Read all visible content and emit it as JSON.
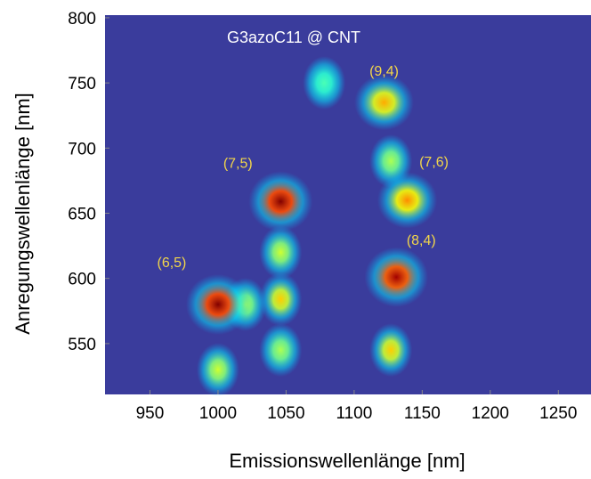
{
  "chart_data": {
    "type": "pl-map",
    "title": "G3azoC11 @ CNT",
    "x_label": "Emissionswellenlänge [nm]",
    "y_label": "Anregungswellenlänge [nm]",
    "xlim": [
      917,
      1274
    ],
    "ylim": [
      511,
      802
    ],
    "xticks": [
      950,
      1000,
      1050,
      1100,
      1150,
      1200,
      1250
    ],
    "yticks": [
      550,
      600,
      650,
      700,
      750,
      800
    ],
    "background": "#3a3c9c",
    "label_color": "#f2d64a",
    "peaks": [
      {
        "label": "(6,5)",
        "x": 1000,
        "y": 580,
        "intensity": 1.0
      },
      {
        "label": "(7,5)",
        "x": 1046,
        "y": 659,
        "intensity": 1.0
      },
      {
        "label": "(9,4)",
        "x": 1122,
        "y": 735,
        "intensity": 0.55
      },
      {
        "label": "(7,6)",
        "x": 1139,
        "y": 660,
        "intensity": 0.6
      },
      {
        "label": "(8,4)",
        "x": 1131,
        "y": 601,
        "intensity": 0.95
      }
    ],
    "spots": [
      {
        "x": 1000,
        "y": 530,
        "intensity": 0.35
      },
      {
        "x": 1046,
        "y": 584,
        "intensity": 0.5
      },
      {
        "x": 1046,
        "y": 620,
        "intensity": 0.35
      },
      {
        "x": 1046,
        "y": 545,
        "intensity": 0.3
      },
      {
        "x": 1127,
        "y": 545,
        "intensity": 0.5
      },
      {
        "x": 1127,
        "y": 690,
        "intensity": 0.3
      },
      {
        "x": 1078,
        "y": 750,
        "intensity": 0.15
      },
      {
        "x": 1020,
        "y": 580,
        "intensity": 0.3
      }
    ]
  }
}
